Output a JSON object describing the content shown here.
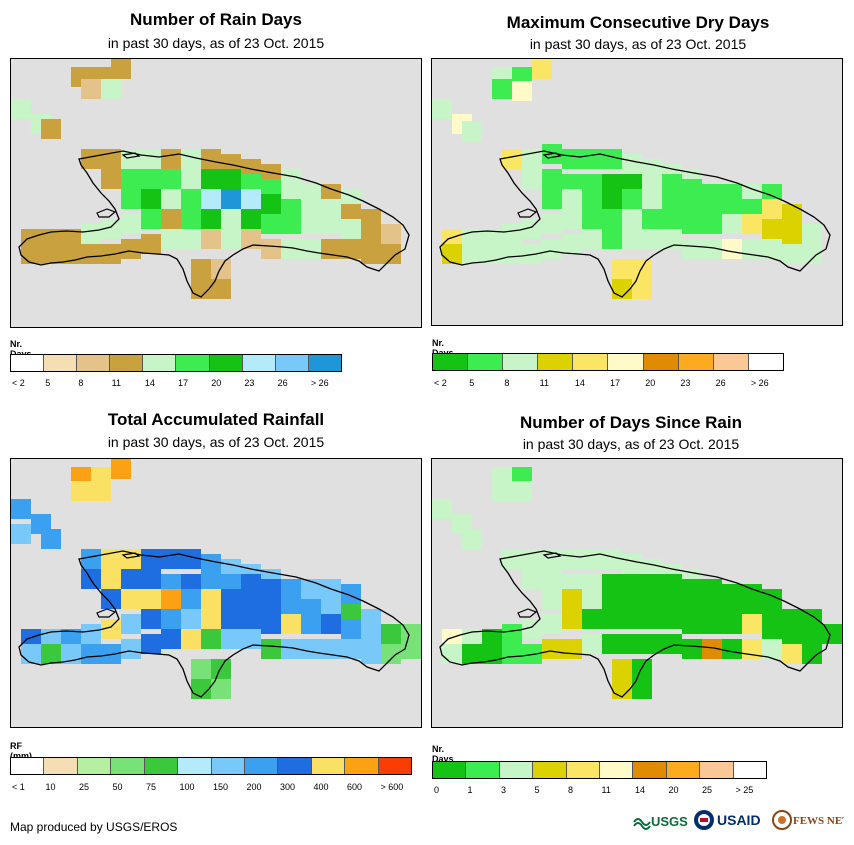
{
  "panels": [
    {
      "id": "rain-days",
      "title": "Number of Rain Days",
      "subtitle": "in past 30 days, as of 23 Oct. 2015",
      "legend": {
        "title": "Nr. Days",
        "labels": [
          "< 2",
          "5",
          "8",
          "11",
          "14",
          "17",
          "20",
          "23",
          "26",
          "> 26"
        ],
        "colors": [
          "#ffffff",
          "#f5deb3",
          "#e3c38a",
          "#c9a13e",
          "#c8f5c8",
          "#3cec50",
          "#14c314",
          "#b4ebfa",
          "#78c8fa",
          "#1e96d7"
        ]
      }
    },
    {
      "id": "max-dry-days",
      "title": "Maximum Consecutive Dry Days",
      "subtitle": "in past 30 days, as of 23 Oct. 2015",
      "legend": {
        "title": "Nr. Days",
        "labels": [
          "< 2",
          "5",
          "8",
          "11",
          "14",
          "17",
          "20",
          "23",
          "26",
          "> 26"
        ],
        "colors": [
          "#14c314",
          "#3cec50",
          "#c8f5c8",
          "#dcd200",
          "#fae664",
          "#fffac8",
          "#e08c00",
          "#fcaa1e",
          "#fac896",
          "#ffffff"
        ]
      }
    },
    {
      "id": "total-rainfall",
      "title": "Total Accumulated Rainfall",
      "subtitle": "in past 30 days, as of 23 Oct. 2015",
      "legend": {
        "title": "RF (mm)",
        "labels": [
          "< 1",
          "10",
          "25",
          "50",
          "75",
          "100",
          "150",
          "200",
          "300",
          "400",
          "600",
          "> 600"
        ],
        "colors": [
          "#ffffff",
          "#f5deb3",
          "#b4f0a0",
          "#78e178",
          "#3cc83c",
          "#b4ebfa",
          "#78c8fa",
          "#3ca0f0",
          "#1e6ee1",
          "#fae164",
          "#fca014",
          "#fa3c00"
        ]
      }
    },
    {
      "id": "days-since-rain",
      "title": "Number of Days Since Rain",
      "subtitle": "in past 30 days, as of 23 Oct. 2015",
      "legend": {
        "title": "Nr. Days",
        "labels": [
          "0",
          "1",
          "3",
          "5",
          "8",
          "11",
          "14",
          "20",
          "25",
          "> 25"
        ],
        "colors": [
          "#14c314",
          "#3cec50",
          "#c8f5c8",
          "#dcd200",
          "#fae664",
          "#fffac8",
          "#e08c00",
          "#fcaa1e",
          "#fac896",
          "#ffffff"
        ]
      }
    }
  ],
  "credit": "Map produced by USGS/EROS",
  "logos": {
    "usgs": "USGS",
    "usaid": "USAID",
    "fewsnet": "FEWS NET"
  },
  "colors": {
    "map_background": "#e0e0e0",
    "coastline": "#000000"
  }
}
